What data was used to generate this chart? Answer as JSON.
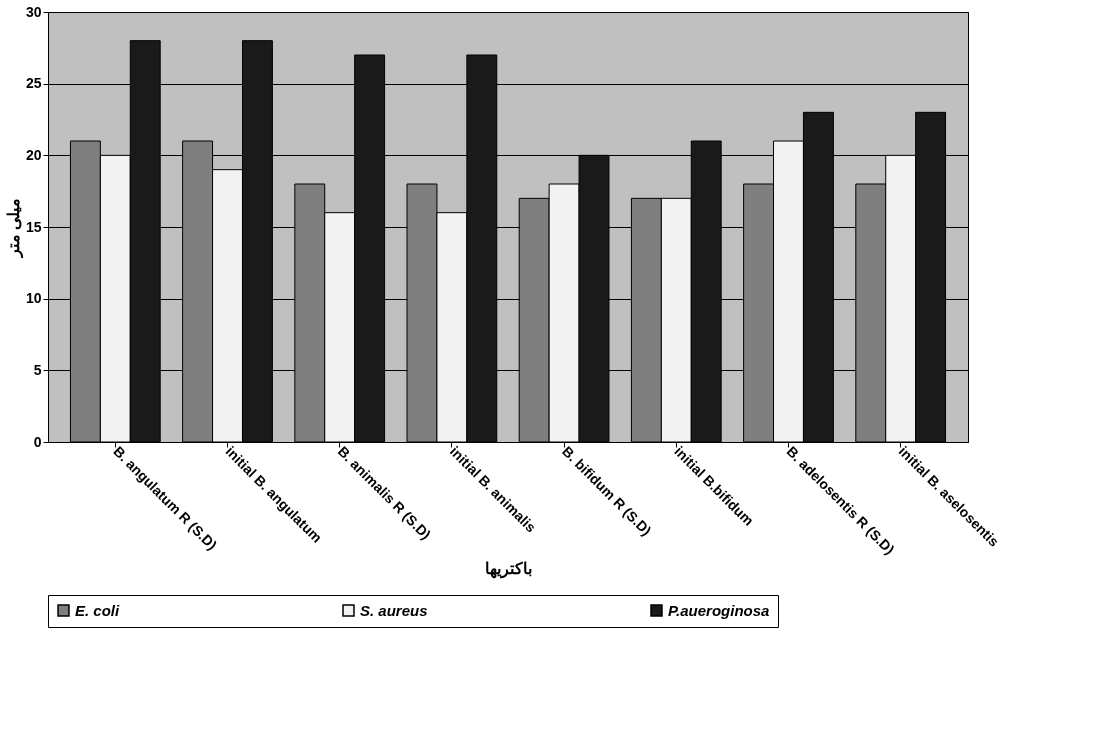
{
  "chart_data": {
    "type": "bar",
    "xlabel": "باكتريها",
    "ylabel": "ميلى متر",
    "categories": [
      "B. angulatum R (S.D)",
      "initial B. angulatum",
      "B. animalis R (S.D)",
      "initial B. animalis",
      "B. bifidum R (S.D)",
      "initial B.bifidum",
      "B. adelosentis R (S.D)",
      "initial B. aselosentis"
    ],
    "series": [
      {
        "name": "E. coli",
        "color": "#7f7f7f",
        "values": [
          21,
          21,
          18,
          18,
          17,
          17,
          18,
          18
        ]
      },
      {
        "name": "S. aureus",
        "color": "#f2f2f2",
        "values": [
          20,
          19,
          16,
          16,
          18,
          17,
          21,
          20
        ]
      },
      {
        "name": "P.aueroginosa",
        "color": "#1a1a1a",
        "values": [
          28,
          28,
          27,
          27,
          20,
          21,
          23,
          23
        ]
      }
    ],
    "ylim": [
      0,
      30
    ],
    "yticks": [
      0,
      5,
      10,
      15,
      20,
      25,
      30
    ],
    "grid": "y",
    "legend": "bottom"
  }
}
